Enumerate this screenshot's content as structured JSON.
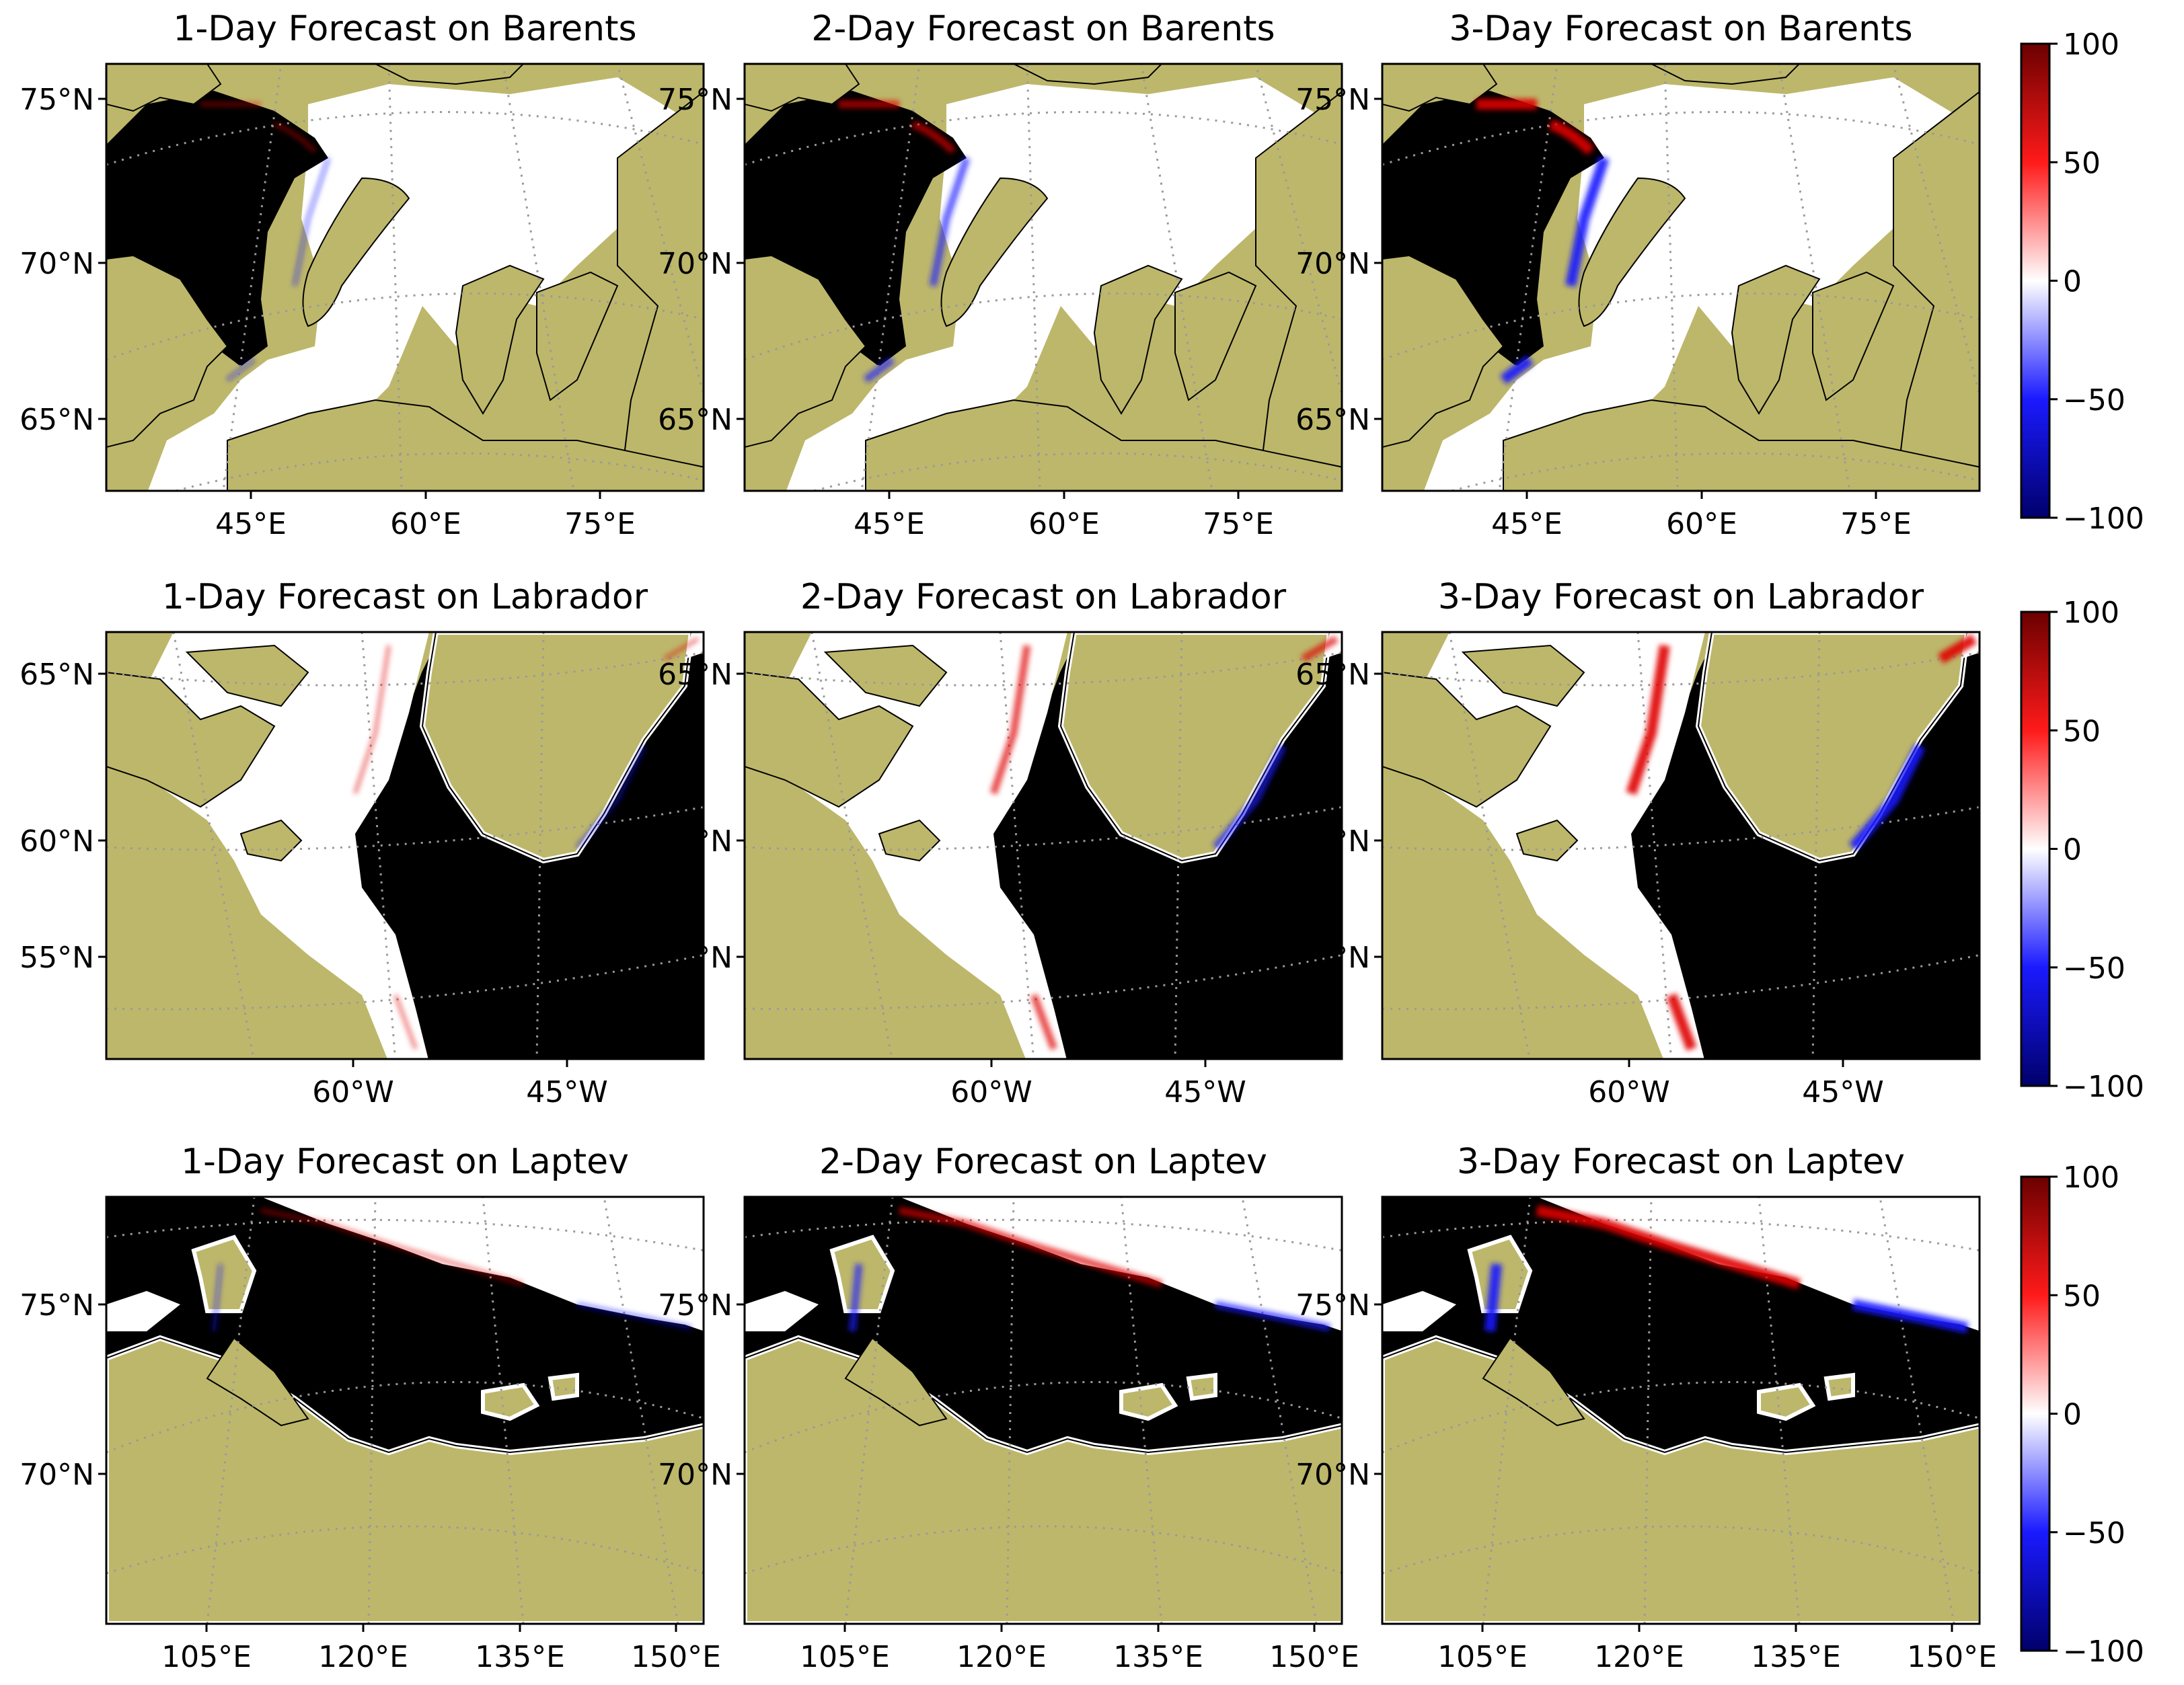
{
  "colorbar": {
    "ticks": [
      "100",
      "50",
      "0",
      "−50",
      "−100"
    ]
  },
  "rows": [
    {
      "region": "Barents",
      "panel_titles": [
        "1-Day Forecast on Barents",
        "2-Day Forecast on Barents",
        "3-Day Forecast on Barents"
      ],
      "lat_labels": [
        "75°N",
        "70°N",
        "65°N"
      ],
      "lon_labels": [
        "45°E",
        "60°E",
        "75°E"
      ]
    },
    {
      "region": "Labrador",
      "panel_titles": [
        "1-Day Forecast on Labrador",
        "2-Day Forecast on Labrador",
        "3-Day Forecast on Labrador"
      ],
      "lat_labels": [
        "65°N",
        "60°N",
        "55°N"
      ],
      "lon_labels": [
        "60°W",
        "45°W"
      ]
    },
    {
      "region": "Laptev",
      "panel_titles": [
        "1-Day Forecast on Laptev",
        "2-Day Forecast on Laptev",
        "3-Day Forecast on Laptev"
      ],
      "lat_labels": [
        "75°N",
        "70°N"
      ],
      "lon_labels": [
        "105°E",
        "120°E",
        "135°E",
        "150°E"
      ]
    }
  ],
  "colors": {
    "land": "#bdb76b",
    "ocean": "#000000",
    "ice": "#ffffff",
    "positive": "#e00000",
    "negative": "#1a1aff",
    "grid": "#9a9a9a"
  }
}
